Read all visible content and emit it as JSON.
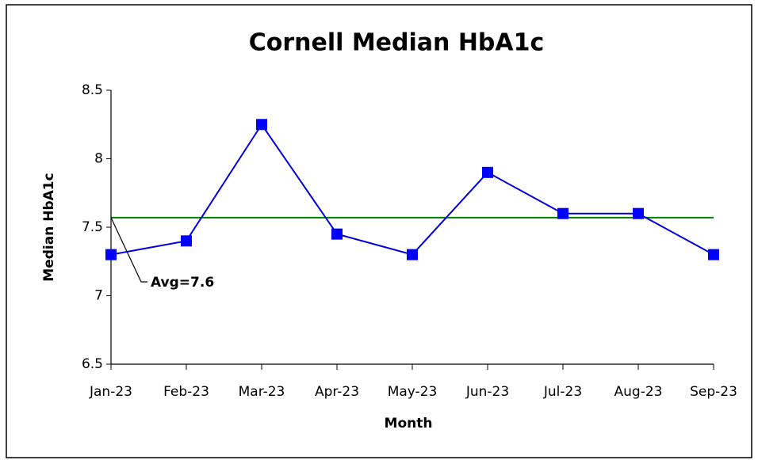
{
  "chart_data": {
    "type": "line",
    "title": "Cornell Median HbA1c",
    "x_label": "Month",
    "y_label": "Median HbA1c",
    "categories": [
      "Jan-23",
      "Feb-23",
      "Mar-23",
      "Apr-23",
      "May-23",
      "Jun-23",
      "Jul-23",
      "Aug-23",
      "Sep-23"
    ],
    "values": [
      7.3,
      7.4,
      8.25,
      7.45,
      7.3,
      7.9,
      7.6,
      7.6,
      7.3
    ],
    "color": "#0000ff",
    "ylim": [
      6.5,
      8.5
    ],
    "yticks": [
      6.5,
      7,
      7.5,
      8,
      8.5
    ],
    "grid": false,
    "reference_line": {
      "value": 7.57,
      "color": "#008000",
      "label": "Avg=7.6"
    }
  }
}
